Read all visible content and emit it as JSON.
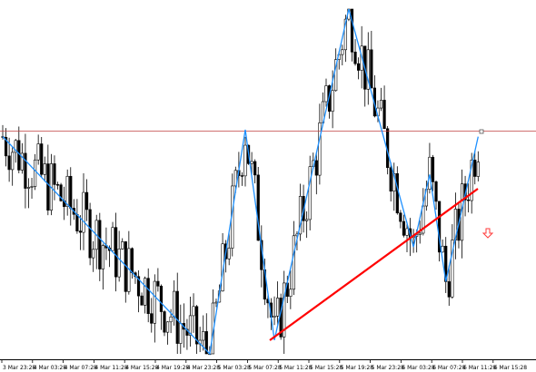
{
  "window": {
    "background": "#ffffff",
    "frame_color": "#000000"
  },
  "x_axis": {
    "tick_labels": [
      "3 Mar 23:28",
      "4 Mar 03:28",
      "4 Mar 07:28",
      "4 Mar 11:28",
      "4 Mar 15:28",
      "4 Mar 19:28",
      "4 Mar 23:28",
      "5 Mar 03:28",
      "5 Mar 07:28",
      "5 Mar 11:28",
      "5 Mar 15:28",
      "5 Mar 19:28",
      "5 Mar 23:28",
      "6 Mar 03:28",
      "6 Mar 07:28",
      "6 Mar 11:28",
      "6 Mar 15:28"
    ]
  },
  "indicators": {
    "zigzag_color": "#1e90ff",
    "trendline_color": "#ff0000",
    "price_line_color": "#c04040",
    "sell_arrow_color": "#ff3b3b",
    "sell_arrow_icon": "arrow-down-icon",
    "price_marker_icon": "price-marker-icon"
  },
  "chart_data": {
    "type": "candlestick",
    "title": "",
    "bar_count": 148,
    "y_axis_labels_shown": false,
    "grid": false,
    "zigzag_pivots_relative": [
      {
        "bar": 0,
        "value": 0.63
      },
      {
        "bar": 64,
        "value": 0.0
      },
      {
        "bar": 75,
        "value": 0.65
      },
      {
        "bar": 84,
        "value": 0.04
      },
      {
        "bar": 107,
        "value": 1.0
      },
      {
        "bar": 127,
        "value": 0.31
      },
      {
        "bar": 132,
        "value": 0.52
      },
      {
        "bar": 137,
        "value": 0.21
      },
      {
        "bar": 147,
        "value": 0.63
      }
    ]
  }
}
